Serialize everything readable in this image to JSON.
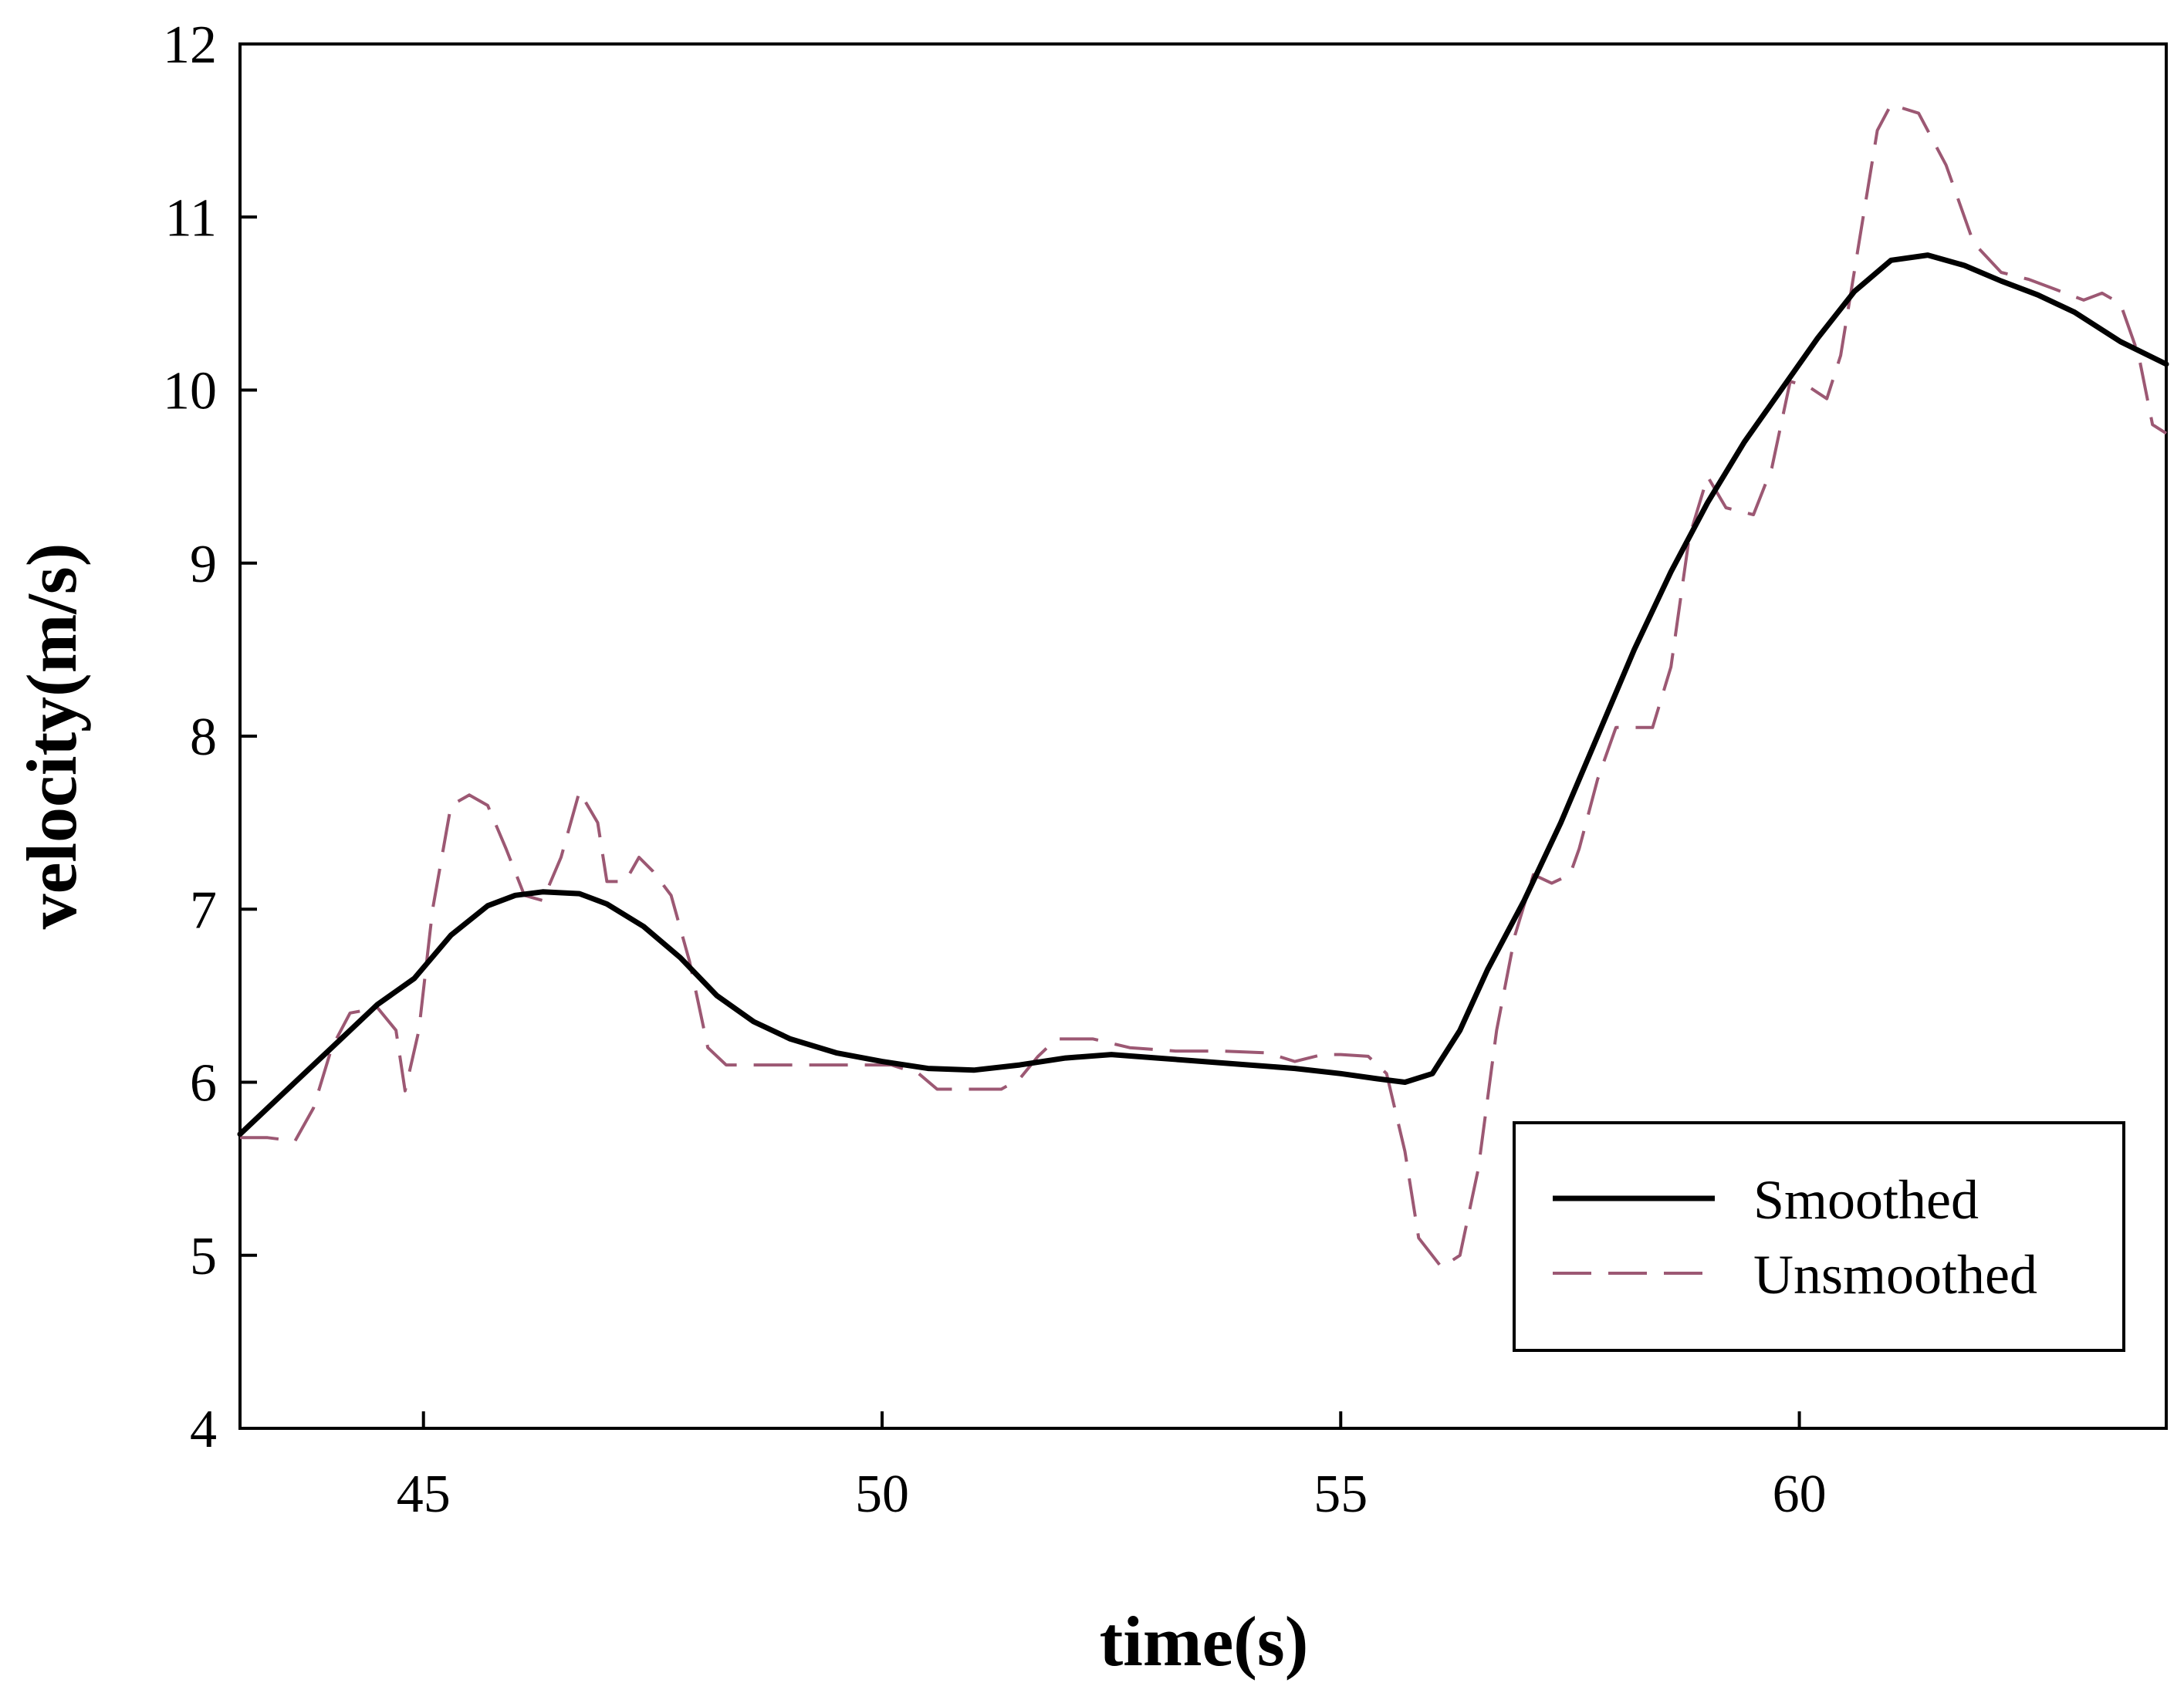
{
  "chart_data": {
    "type": "line",
    "title": "",
    "xlabel": "time(s)",
    "ylabel": "velocity(m/s)",
    "xlim": [
      43,
      64
    ],
    "ylim": [
      4,
      12
    ],
    "xticks": [
      45,
      50,
      55,
      60
    ],
    "yticks": [
      4,
      5,
      6,
      7,
      8,
      9,
      10,
      11,
      12
    ],
    "xtick_labels": [
      "45",
      "50",
      "55",
      "60"
    ],
    "ytick_labels": [
      "4",
      "5",
      "6",
      "7",
      "8",
      "9",
      "10",
      "11",
      "12"
    ],
    "grid": false,
    "legend_position": "lower-right",
    "series": [
      {
        "name": "Smoothed",
        "style": "solid",
        "color": "#000000",
        "points": [
          [
            43.0,
            5.7
          ],
          [
            43.5,
            5.95
          ],
          [
            44.0,
            6.2
          ],
          [
            44.5,
            6.45
          ],
          [
            44.9,
            6.6
          ],
          [
            45.3,
            6.85
          ],
          [
            45.7,
            7.02
          ],
          [
            46.0,
            7.08
          ],
          [
            46.3,
            7.1
          ],
          [
            46.7,
            7.09
          ],
          [
            47.0,
            7.03
          ],
          [
            47.4,
            6.9
          ],
          [
            47.8,
            6.72
          ],
          [
            48.2,
            6.5
          ],
          [
            48.6,
            6.35
          ],
          [
            49.0,
            6.25
          ],
          [
            49.5,
            6.17
          ],
          [
            50.0,
            6.12
          ],
          [
            50.5,
            6.08
          ],
          [
            51.0,
            6.07
          ],
          [
            51.5,
            6.1
          ],
          [
            52.0,
            6.14
          ],
          [
            52.5,
            6.16
          ],
          [
            53.0,
            6.14
          ],
          [
            53.5,
            6.12
          ],
          [
            54.0,
            6.1
          ],
          [
            54.5,
            6.08
          ],
          [
            55.0,
            6.05
          ],
          [
            55.4,
            6.02
          ],
          [
            55.7,
            6.0
          ],
          [
            56.0,
            6.05
          ],
          [
            56.3,
            6.3
          ],
          [
            56.6,
            6.65
          ],
          [
            57.0,
            7.05
          ],
          [
            57.4,
            7.5
          ],
          [
            57.8,
            8.0
          ],
          [
            58.2,
            8.5
          ],
          [
            58.6,
            8.95
          ],
          [
            59.0,
            9.35
          ],
          [
            59.4,
            9.7
          ],
          [
            59.8,
            10.0
          ],
          [
            60.2,
            10.3
          ],
          [
            60.6,
            10.57
          ],
          [
            61.0,
            10.75
          ],
          [
            61.4,
            10.78
          ],
          [
            61.8,
            10.72
          ],
          [
            62.2,
            10.63
          ],
          [
            62.6,
            10.55
          ],
          [
            63.0,
            10.45
          ],
          [
            63.5,
            10.28
          ],
          [
            64.0,
            10.15
          ]
        ]
      },
      {
        "name": "Unsmoothed",
        "style": "dashed",
        "color": "#9c5873",
        "points": [
          [
            43.0,
            5.68
          ],
          [
            43.3,
            5.68
          ],
          [
            43.6,
            5.66
          ],
          [
            43.8,
            5.85
          ],
          [
            44.0,
            6.2
          ],
          [
            44.2,
            6.4
          ],
          [
            44.5,
            6.43
          ],
          [
            44.7,
            6.3
          ],
          [
            44.8,
            5.95
          ],
          [
            44.95,
            6.3
          ],
          [
            45.1,
            7.0
          ],
          [
            45.3,
            7.6
          ],
          [
            45.5,
            7.66
          ],
          [
            45.7,
            7.6
          ],
          [
            45.9,
            7.35
          ],
          [
            46.1,
            7.08
          ],
          [
            46.3,
            7.05
          ],
          [
            46.5,
            7.3
          ],
          [
            46.7,
            7.68
          ],
          [
            46.9,
            7.5
          ],
          [
            47.0,
            7.16
          ],
          [
            47.2,
            7.16
          ],
          [
            47.35,
            7.3
          ],
          [
            47.5,
            7.22
          ],
          [
            47.7,
            7.08
          ],
          [
            47.9,
            6.7
          ],
          [
            48.1,
            6.2
          ],
          [
            48.3,
            6.1
          ],
          [
            48.7,
            6.1
          ],
          [
            49.2,
            6.1
          ],
          [
            49.7,
            6.1
          ],
          [
            50.1,
            6.1
          ],
          [
            50.4,
            6.05
          ],
          [
            50.6,
            5.96
          ],
          [
            50.9,
            5.96
          ],
          [
            51.3,
            5.96
          ],
          [
            51.5,
            6.02
          ],
          [
            51.7,
            6.15
          ],
          [
            51.9,
            6.25
          ],
          [
            52.3,
            6.25
          ],
          [
            52.7,
            6.2
          ],
          [
            53.2,
            6.18
          ],
          [
            53.7,
            6.18
          ],
          [
            54.2,
            6.17
          ],
          [
            54.5,
            6.12
          ],
          [
            54.8,
            6.16
          ],
          [
            55.0,
            6.16
          ],
          [
            55.3,
            6.15
          ],
          [
            55.5,
            6.05
          ],
          [
            55.7,
            5.6
          ],
          [
            55.85,
            5.1
          ],
          [
            56.1,
            4.93
          ],
          [
            56.3,
            5.0
          ],
          [
            56.5,
            5.5
          ],
          [
            56.7,
            6.3
          ],
          [
            56.9,
            6.85
          ],
          [
            57.1,
            7.2
          ],
          [
            57.3,
            7.15
          ],
          [
            57.5,
            7.2
          ],
          [
            57.6,
            7.35
          ],
          [
            57.8,
            7.75
          ],
          [
            58.0,
            8.05
          ],
          [
            58.2,
            8.05
          ],
          [
            58.4,
            8.05
          ],
          [
            58.6,
            8.4
          ],
          [
            58.8,
            9.15
          ],
          [
            59.0,
            9.5
          ],
          [
            59.2,
            9.32
          ],
          [
            59.5,
            9.28
          ],
          [
            59.7,
            9.55
          ],
          [
            59.9,
            10.05
          ],
          [
            60.1,
            10.02
          ],
          [
            60.3,
            9.95
          ],
          [
            60.45,
            10.2
          ],
          [
            60.65,
            10.85
          ],
          [
            60.85,
            11.5
          ],
          [
            61.0,
            11.65
          ],
          [
            61.3,
            11.6
          ],
          [
            61.6,
            11.3
          ],
          [
            61.9,
            10.85
          ],
          [
            62.2,
            10.68
          ],
          [
            62.5,
            10.64
          ],
          [
            62.8,
            10.58
          ],
          [
            63.1,
            10.52
          ],
          [
            63.3,
            10.56
          ],
          [
            63.5,
            10.5
          ],
          [
            63.7,
            10.2
          ],
          [
            63.85,
            9.8
          ],
          [
            64.0,
            9.75
          ]
        ]
      }
    ]
  }
}
